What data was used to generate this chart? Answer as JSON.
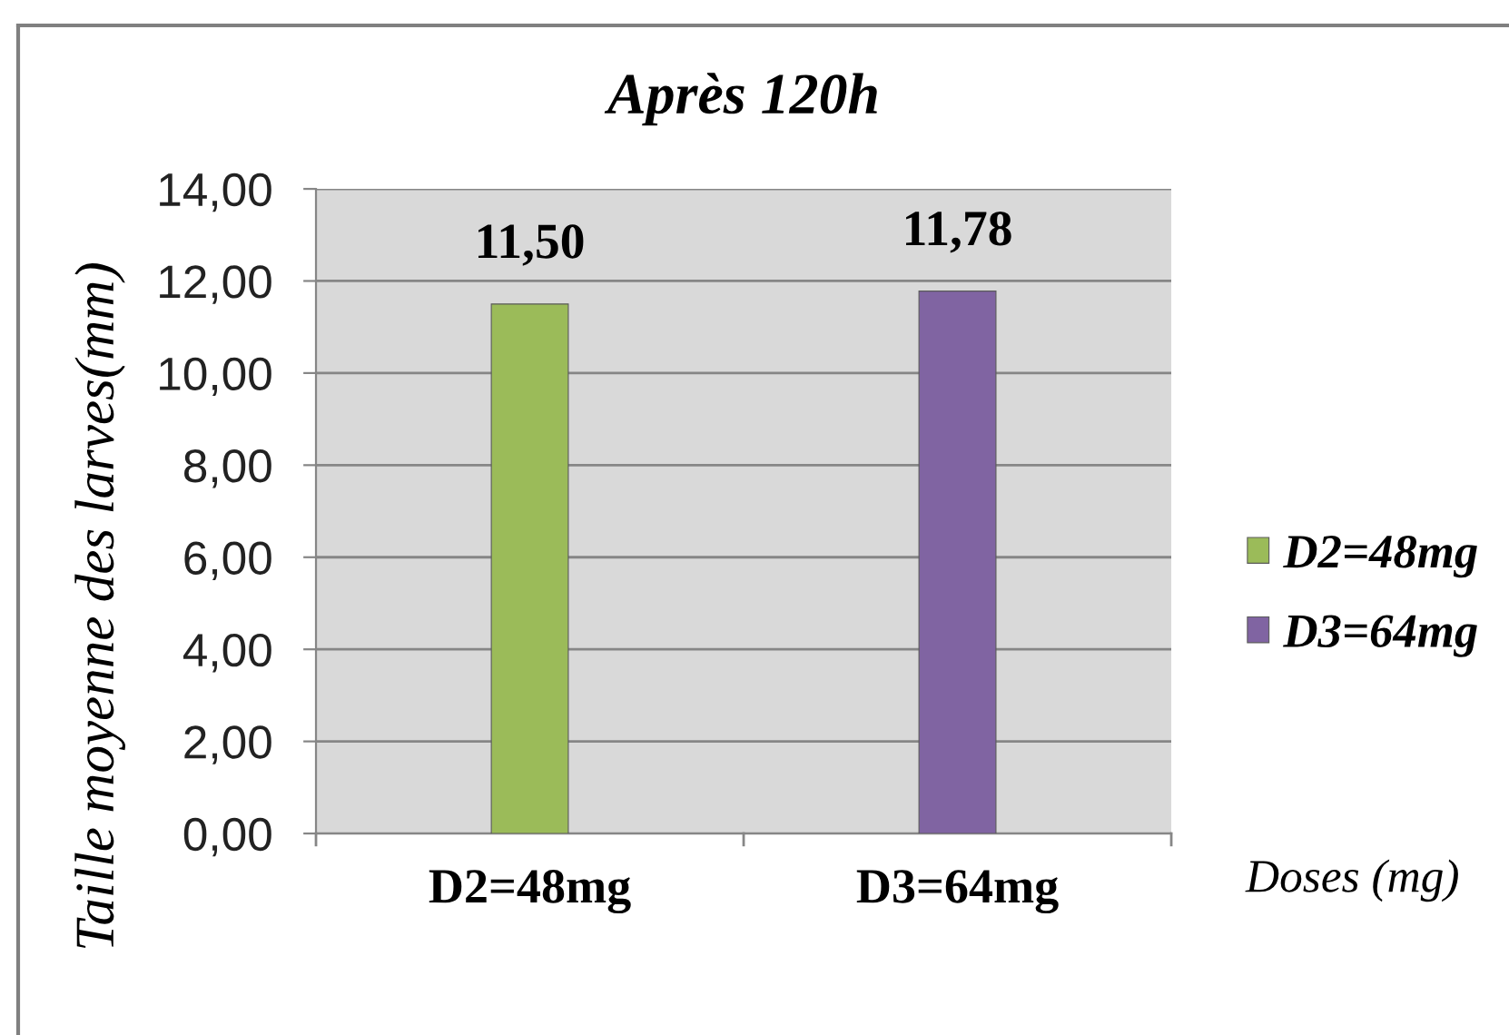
{
  "chart_data": {
    "type": "bar",
    "title": "Après 120h",
    "xlabel": "Doses (mg)",
    "ylabel": "Taille moyenne des larves(mm)",
    "categories": [
      "D2=48mg",
      "D3=64mg"
    ],
    "series": [
      {
        "name": "D2=48mg",
        "color": "#9bbb59",
        "values": [
          11.5,
          null
        ],
        "value_labels": [
          "11,50",
          null
        ]
      },
      {
        "name": "D3=64mg",
        "color": "#8064a2",
        "values": [
          null,
          11.78
        ],
        "value_labels": [
          null,
          "11,78"
        ]
      }
    ],
    "ylim": [
      0,
      14
    ],
    "yticks": [
      {
        "value": 0,
        "label": "0,00"
      },
      {
        "value": 2,
        "label": "2,00"
      },
      {
        "value": 4,
        "label": "4,00"
      },
      {
        "value": 6,
        "label": "6,00"
      },
      {
        "value": 8,
        "label": "8,00"
      },
      {
        "value": 10,
        "label": "10,00"
      },
      {
        "value": 12,
        "label": "12,00"
      },
      {
        "value": 14,
        "label": "14,00"
      }
    ],
    "grid": "y",
    "legend": "right"
  }
}
